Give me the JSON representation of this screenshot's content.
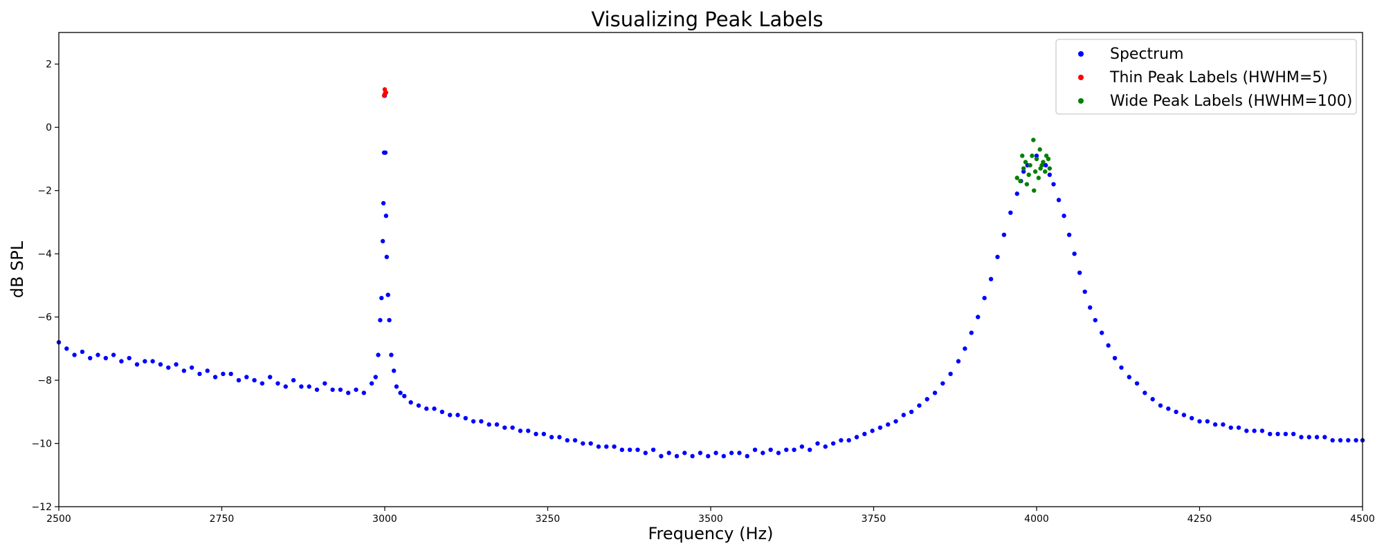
{
  "chart_data": {
    "type": "scatter",
    "title": "Visualizing Peak Labels",
    "xlabel": "Frequency (Hz)",
    "ylabel": "dB SPL",
    "xlim": [
      2500,
      4500
    ],
    "ylim": [
      -12,
      3
    ],
    "xticks": [
      2500,
      2750,
      3000,
      3250,
      3500,
      3750,
      4000,
      4250,
      4500
    ],
    "yticks": [
      -12,
      -10,
      -8,
      -6,
      -4,
      -2,
      0,
      2
    ],
    "grid": false,
    "legend_position": "top-right",
    "series": [
      {
        "name": "Spectrum",
        "color": "#0000ff",
        "x": [
          2500,
          2512,
          2524,
          2536,
          2548,
          2560,
          2572,
          2584,
          2596,
          2608,
          2620,
          2632,
          2644,
          2656,
          2668,
          2680,
          2692,
          2704,
          2716,
          2728,
          2740,
          2752,
          2764,
          2776,
          2788,
          2800,
          2812,
          2824,
          2836,
          2848,
          2860,
          2872,
          2884,
          2896,
          2908,
          2920,
          2932,
          2944,
          2956,
          2968,
          2980,
          2986,
          2990,
          2993,
          2995,
          2997,
          2998,
          2999,
          3000,
          3001,
          3002,
          3003,
          3005,
          3007,
          3010,
          3014,
          3018,
          3024,
          3030,
          3040,
          3052,
          3064,
          3076,
          3088,
          3100,
          3112,
          3124,
          3136,
          3148,
          3160,
          3172,
          3184,
          3196,
          3208,
          3220,
          3232,
          3244,
          3256,
          3268,
          3280,
          3292,
          3304,
          3316,
          3328,
          3340,
          3352,
          3364,
          3376,
          3388,
          3400,
          3412,
          3424,
          3436,
          3448,
          3460,
          3472,
          3484,
          3496,
          3508,
          3520,
          3532,
          3544,
          3556,
          3568,
          3580,
          3592,
          3604,
          3616,
          3628,
          3640,
          3652,
          3664,
          3676,
          3688,
          3700,
          3712,
          3724,
          3736,
          3748,
          3760,
          3772,
          3784,
          3796,
          3808,
          3820,
          3832,
          3844,
          3856,
          3868,
          3880,
          3890,
          3900,
          3910,
          3920,
          3930,
          3940,
          3950,
          3960,
          3970,
          3976,
          3980,
          3986,
          4000,
          4014,
          4020,
          4026,
          4034,
          4042,
          4050,
          4058,
          4066,
          4074,
          4082,
          4090,
          4100,
          4110,
          4120,
          4130,
          4142,
          4154,
          4166,
          4178,
          4190,
          4202,
          4214,
          4226,
          4238,
          4250,
          4262,
          4274,
          4286,
          4298,
          4310,
          4322,
          4334,
          4346,
          4358,
          4370,
          4382,
          4394,
          4406,
          4418,
          4430,
          4442,
          4454,
          4466,
          4478,
          4490,
          4500
        ],
        "y": [
          -6.8,
          -7.0,
          -7.2,
          -7.1,
          -7.3,
          -7.2,
          -7.3,
          -7.2,
          -7.4,
          -7.3,
          -7.5,
          -7.4,
          -7.4,
          -7.5,
          -7.6,
          -7.5,
          -7.7,
          -7.6,
          -7.8,
          -7.7,
          -7.9,
          -7.8,
          -7.8,
          -8.0,
          -7.9,
          -8.0,
          -8.1,
          -7.9,
          -8.1,
          -8.2,
          -8.0,
          -8.2,
          -8.2,
          -8.3,
          -8.1,
          -8.3,
          -8.3,
          -8.4,
          -8.3,
          -8.4,
          -8.1,
          -7.9,
          -7.2,
          -6.1,
          -5.4,
          -3.6,
          -2.4,
          -0.8,
          1.0,
          -0.8,
          -2.8,
          -4.1,
          -5.3,
          -6.1,
          -7.2,
          -7.7,
          -8.2,
          -8.4,
          -8.5,
          -8.7,
          -8.8,
          -8.9,
          -8.9,
          -9.0,
          -9.1,
          -9.1,
          -9.2,
          -9.3,
          -9.3,
          -9.4,
          -9.4,
          -9.5,
          -9.5,
          -9.6,
          -9.6,
          -9.7,
          -9.7,
          -9.8,
          -9.8,
          -9.9,
          -9.9,
          -10.0,
          -10.0,
          -10.1,
          -10.1,
          -10.1,
          -10.2,
          -10.2,
          -10.2,
          -10.3,
          -10.2,
          -10.4,
          -10.3,
          -10.4,
          -10.3,
          -10.4,
          -10.3,
          -10.4,
          -10.3,
          -10.4,
          -10.3,
          -10.3,
          -10.4,
          -10.2,
          -10.3,
          -10.2,
          -10.3,
          -10.2,
          -10.2,
          -10.1,
          -10.2,
          -10.0,
          -10.1,
          -10.0,
          -9.9,
          -9.9,
          -9.8,
          -9.7,
          -9.6,
          -9.5,
          -9.4,
          -9.3,
          -9.1,
          -9.0,
          -8.8,
          -8.6,
          -8.4,
          -8.1,
          -7.8,
          -7.4,
          -7.0,
          -6.5,
          -6.0,
          -5.4,
          -4.8,
          -4.1,
          -3.4,
          -2.7,
          -2.1,
          -1.7,
          -1.4,
          -1.2,
          -0.9,
          -1.2,
          -1.5,
          -1.8,
          -2.3,
          -2.8,
          -3.4,
          -4.0,
          -4.6,
          -5.2,
          -5.7,
          -6.1,
          -6.5,
          -6.9,
          -7.3,
          -7.6,
          -7.9,
          -8.1,
          -8.4,
          -8.6,
          -8.8,
          -8.9,
          -9.0,
          -9.1,
          -9.2,
          -9.3,
          -9.3,
          -9.4,
          -9.4,
          -9.5,
          -9.5,
          -9.6,
          -9.6,
          -9.6,
          -9.7,
          -9.7,
          -9.7,
          -9.7,
          -9.8,
          -9.8,
          -9.8,
          -9.8,
          -9.9,
          -9.9,
          -9.9,
          -9.9,
          -9.9
        ]
      },
      {
        "name": "Thin Peak Labels (HWHM=5)",
        "color": "#ff0000",
        "x": [
          2999,
          3000,
          3001,
          3000,
          3002
        ],
        "y": [
          1.0,
          1.2,
          1.1,
          1.05,
          1.1
        ]
      },
      {
        "name": "Wide Peak Labels (HWHM=100)",
        "color": "#008000",
        "x": [
          3975,
          3980,
          3985,
          3990,
          3995,
          4000,
          4005,
          4010,
          4015,
          4020,
          3978,
          3988,
          3998,
          4008,
          4018,
          3983,
          3993,
          4003,
          4013,
          3970,
          3996,
          4006
        ],
        "y": [
          -1.7,
          -1.3,
          -1.8,
          -1.2,
          -0.4,
          -1.0,
          -0.7,
          -1.1,
          -0.9,
          -1.3,
          -0.9,
          -1.5,
          -1.4,
          -1.2,
          -1.0,
          -1.1,
          -0.9,
          -1.6,
          -1.4,
          -1.6,
          -2.0,
          -1.3
        ]
      }
    ]
  }
}
